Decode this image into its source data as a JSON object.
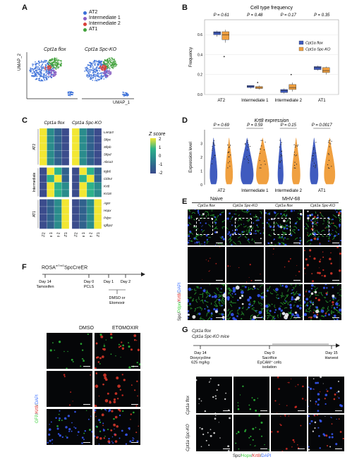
{
  "panels": {
    "A": {
      "letter": "A",
      "legend": [
        {
          "label": "AT2",
          "color": "#3a6fd8"
        },
        {
          "label": "Intermediate 1",
          "color": "#8a5fc2"
        },
        {
          "label": "Intermediate 2",
          "color": "#d9403a"
        },
        {
          "label": "AT1",
          "color": "#41a13b"
        }
      ],
      "umap_titles": [
        "Cpt1a flox",
        "Cpt1a Spc-KO"
      ],
      "ylabel": "UMAP_2",
      "xlabel": "UMAP_1"
    },
    "B": {
      "letter": "B",
      "chart_data": {
        "type": "box",
        "title": "Cell type frequency",
        "ylabel": "Frequency",
        "ylim": [
          0,
          0.75
        ],
        "yticks": [
          "0.0",
          "0.2",
          "0.4",
          "0.6"
        ],
        "categories": [
          "AT2",
          "Intermediate 1",
          "Intermediate 2",
          "AT1"
        ],
        "pvalues": [
          "P = 0.61",
          "P = 0.48",
          "P = 0.17",
          "P = 0.35"
        ],
        "series": [
          {
            "name": "Cpt1a flox",
            "color": "#3f5bbf",
            "boxes": [
              [
                0.58,
                0.6,
                0.62,
                0.63,
                0.64
              ],
              [
                0.06,
                0.07,
                0.08,
                0.09,
                0.09
              ],
              [
                0.01,
                0.02,
                0.04,
                0.05,
                0.06
              ],
              [
                0.24,
                0.25,
                0.27,
                0.28,
                0.29
              ]
            ]
          },
          {
            "name": "Cpt1a Spc-KO",
            "color": "#f0a040",
            "boxes": [
              [
                0.52,
                0.55,
                0.6,
                0.63,
                0.65
              ],
              [
                0.05,
                0.06,
                0.07,
                0.08,
                0.09
              ],
              [
                0.03,
                0.05,
                0.07,
                0.1,
                0.12
              ],
              [
                0.2,
                0.22,
                0.24,
                0.27,
                0.28
              ]
            ]
          }
        ],
        "outliers": [
          [
            0.38
          ],
          [
            0.12
          ],
          [
            0.2
          ],
          []
        ],
        "legend": [
          "Cpt1a flox",
          "Cpt1a Spc-KO"
        ]
      }
    },
    "C": {
      "letter": "C",
      "col_titles": [
        "Cpt1a flox",
        "Cpt1a Spc-KO"
      ],
      "columns": [
        "AT2",
        "Intermediate 1",
        "Intermediate 2",
        "AT1",
        "AT2",
        "Intermediate 1",
        "Intermediate 2",
        "AT1"
      ],
      "groups": [
        {
          "name": "AT2",
          "genes": [
            "Lamp3",
            "Sftpc",
            "Sftpb",
            "Sftpd",
            "Abca3"
          ]
        },
        {
          "name": "Intermediate",
          "genes": [
            "Itgb6",
            "Cldn4",
            "Krt8",
            "Krt18"
          ]
        },
        {
          "name": "AT1",
          "genes": [
            "Ager",
            "Hopx",
            "Pdpn",
            "Igfbp2"
          ]
        }
      ],
      "zscores": [
        [
          2,
          -0.5,
          -1,
          -1.5,
          2,
          -0.5,
          -1,
          -1.5
        ],
        [
          2,
          -0.5,
          -1,
          -1.5,
          2,
          -0.5,
          -1,
          -1.5
        ],
        [
          2,
          -0.5,
          -1,
          -1.5,
          2,
          -0.5,
          -1,
          -1.5
        ],
        [
          2,
          -0.5,
          -1,
          -1.5,
          2,
          -0.5,
          -1,
          -1.5
        ],
        [
          2,
          -0.5,
          -1,
          -1.5,
          2,
          -0.5,
          -1,
          -1.5
        ],
        [
          -1.5,
          2,
          0.5,
          -1,
          -1.5,
          2,
          0.5,
          -1
        ],
        [
          -1.5,
          1,
          2,
          -1,
          -1.5,
          1,
          2,
          -1
        ],
        [
          -1.5,
          2,
          1,
          -0.5,
          -1.5,
          2,
          1,
          -0.5
        ],
        [
          -1.5,
          2,
          1,
          -0.5,
          -1.5,
          2,
          1,
          -0.5
        ],
        [
          -1.5,
          -1,
          -0.5,
          2,
          -1.5,
          -1,
          -0.5,
          2
        ],
        [
          -1.5,
          -1,
          -0.5,
          2,
          -1.5,
          -1,
          -0.5,
          2
        ],
        [
          -1.5,
          -1,
          -0.5,
          2,
          -1.5,
          -1,
          -0.5,
          2
        ],
        [
          -1.5,
          -1,
          -0.5,
          2,
          -1.5,
          -1,
          -0.5,
          2
        ]
      ],
      "legend_title": "Z score",
      "legend_ticks": [
        "2",
        "1",
        "0",
        "-1",
        "-2"
      ]
    },
    "D": {
      "letter": "D",
      "chart_data": {
        "type": "violin",
        "title": "Krt8 expression",
        "ylabel": "Expression level",
        "ylim": [
          0,
          4
        ],
        "yticks": [
          "0",
          "1",
          "2",
          "3"
        ],
        "categories": [
          "AT2",
          "Intermediate 1",
          "Intermediate 2",
          "AT1"
        ],
        "pvalues": [
          "P = 0.69",
          "P = 0.59",
          "P = 0.15",
          "P = 0.0017"
        ],
        "series": [
          {
            "name": "Cpt1a flox",
            "color": "#3f5bbf"
          },
          {
            "name": "Cpt1a Spc-KO",
            "color": "#f0a040"
          }
        ]
      }
    },
    "E": {
      "letter": "E",
      "conditions": [
        "Naive",
        "MHV-68"
      ],
      "col_titles": [
        "Cpt1a flox",
        "Cpt1a Spc-KO",
        "Cpt1a flox",
        "Cpt1a Spc-KO"
      ],
      "stain_label": [
        "Spc",
        "/",
        "Pdpn",
        "/",
        "Krt8",
        "/",
        "DAPI"
      ],
      "stain_colors": [
        "#ffffff",
        "#ffffff",
        "#3ad13a",
        "#ffffff",
        "#e0302a",
        "#ffffff",
        "#3a6fff"
      ]
    },
    "F": {
      "letter": "F",
      "strain": "ROSA",
      "strain_sup": "mTmG",
      "strain_rest": "SpcCreER",
      "timeline": [
        {
          "day": "Day 14",
          "event": "Tamoxifen"
        },
        {
          "day": "Day 0",
          "event": "PCLS"
        },
        {
          "day": "Day 1",
          "event": ""
        },
        {
          "day": "Day 2",
          "event": ""
        }
      ],
      "treatment": [
        "DMSO or",
        "Etomoxir"
      ],
      "image_cols": [
        "DMSO",
        "ETOMOXIR"
      ],
      "stain_label": [
        "GFP",
        "/",
        "Krt8",
        "/",
        "DAPI"
      ],
      "stain_colors": [
        "#3ad13a",
        "#ffffff",
        "#e0302a",
        "#ffffff",
        "#3a6fff"
      ]
    },
    "G": {
      "letter": "G",
      "mice": [
        "Cpt1a flox",
        "Cpt1a Spc-KO mice"
      ],
      "timeline": [
        {
          "day": "Day 14",
          "event": [
            "Doxycycline",
            "625 mg/kg"
          ]
        },
        {
          "day": "Day 0",
          "event": [
            "Sacrifice",
            "EpCAM⁺ cells",
            "isolation"
          ]
        },
        {
          "day": "Day 15",
          "event": [
            "Harvest"
          ]
        }
      ],
      "culture": [
        "Organoids",
        "culture"
      ],
      "row_labels": [
        "Cpt1a flox",
        "Cpt1a Spc-KO"
      ],
      "stain_label": [
        "Spc",
        "/",
        "Hopx",
        "/",
        "Krt8",
        "/",
        "DAPI"
      ],
      "stain_colors": [
        "#ffffff",
        "#ffffff",
        "#3ad13a",
        "#ffffff",
        "#e0302a",
        "#ffffff",
        "#3a6fff"
      ]
    }
  }
}
